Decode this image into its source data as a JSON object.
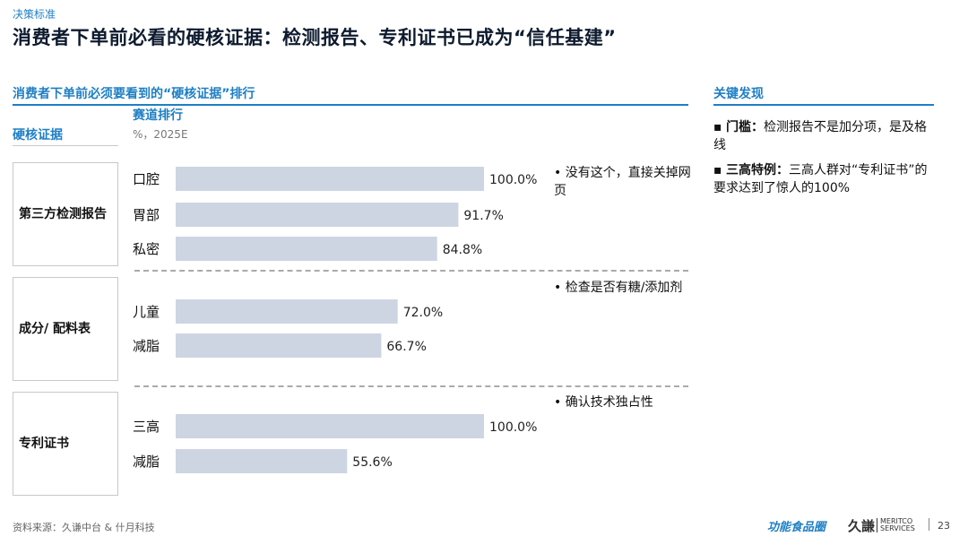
{
  "header": {
    "section_tag": "决策标准",
    "title": "消费者下单前必看的硬核证据：检测报告、专利证书已成为“信任基建”"
  },
  "left_panel": {
    "title": "消费者下单前必须要看到的“硬核证据”排行",
    "col_evidence": "硬核证据",
    "col_ranking": "赛道排行",
    "col_unit": "%，2025E"
  },
  "chart_data": {
    "type": "bar",
    "orientation": "horizontal",
    "unit": "%",
    "xlim": [
      0,
      100
    ],
    "bar_color": "#cdd5e2",
    "groups": [
      {
        "name": "第三方检测报告",
        "note": "• 没有这个，直接关掉网页",
        "items": [
          {
            "label": "口腔",
            "value": 100.0,
            "value_label": "100.0%"
          },
          {
            "label": "胃部",
            "value": 91.7,
            "value_label": "91.7%"
          },
          {
            "label": "私密",
            "value": 84.8,
            "value_label": "84.8%"
          }
        ]
      },
      {
        "name": "成分/ 配料表",
        "note": "• 检查是否有糖/添加剂",
        "items": [
          {
            "label": "儿童",
            "value": 72.0,
            "value_label": "72.0%"
          },
          {
            "label": "减脂",
            "value": 66.7,
            "value_label": "66.7%"
          }
        ]
      },
      {
        "name": "专利证书",
        "note": "• 确认技术独占性",
        "items": [
          {
            "label": "三高",
            "value": 100.0,
            "value_label": "100.0%"
          },
          {
            "label": "减脂",
            "value": 55.6,
            "value_label": "55.6%"
          }
        ]
      }
    ]
  },
  "key_findings": {
    "title": "关键发现",
    "items": [
      {
        "bullet": "▪",
        "bold": "门槛：",
        "text": "检测报告不是加分项，是及格线"
      },
      {
        "bullet": "▪",
        "bold": "三高特例：",
        "text": "三高人群对“专利证书”的要求达到了惊人的100%"
      }
    ]
  },
  "footer": {
    "source": "资料来源：久谦中台 & 什月科技",
    "logo_text": "功能食品圈",
    "brand_cn": "久謙",
    "brand_en_1": "MERITCO",
    "brand_en_2": "SERVICES",
    "page_number": "23"
  }
}
